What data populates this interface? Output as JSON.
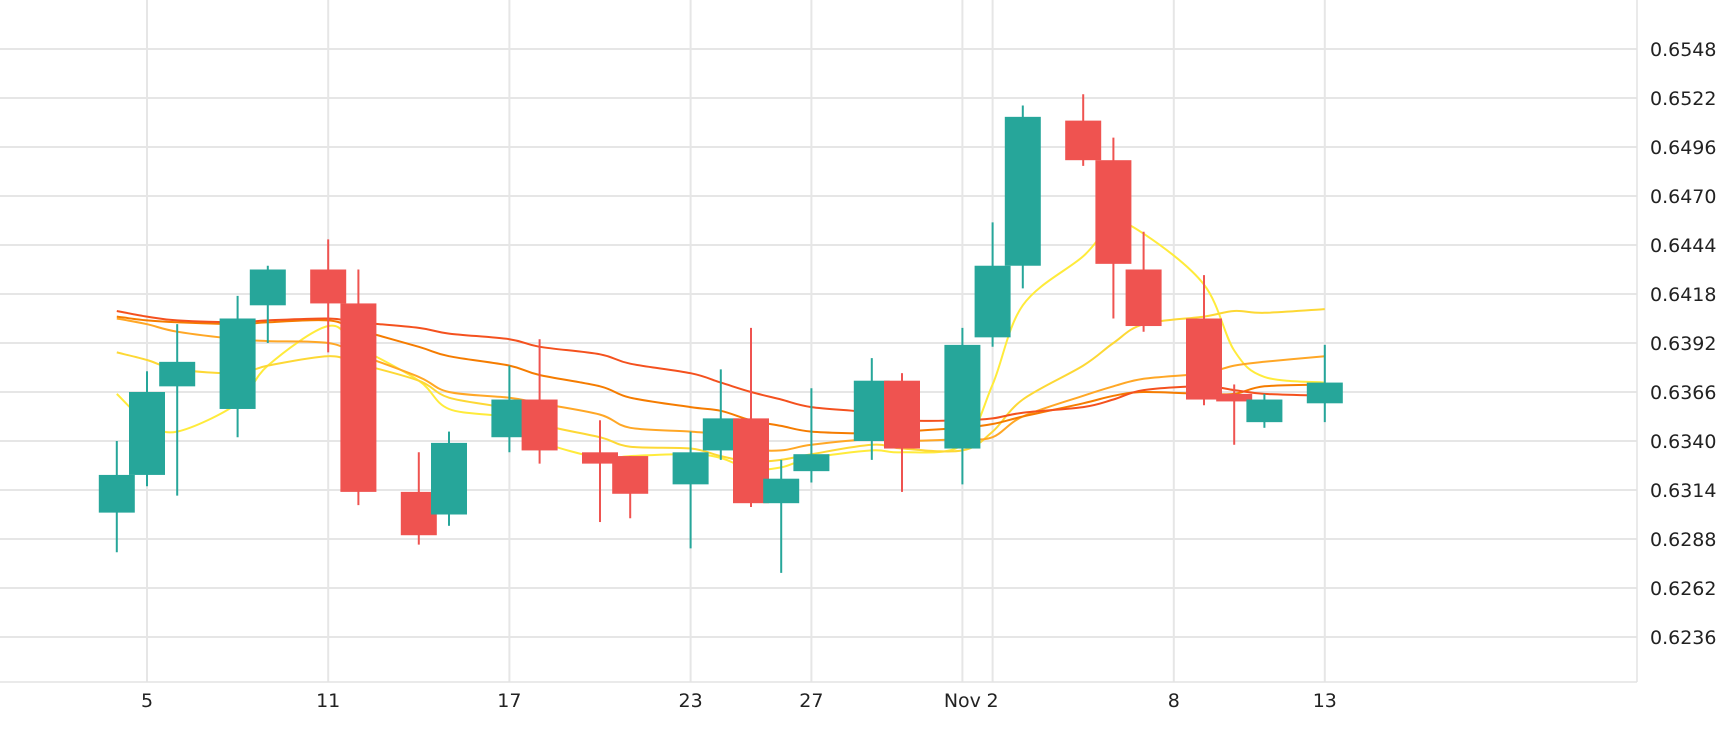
{
  "chart_data": {
    "type": "candlestick",
    "x_ticks": [
      {
        "date": "Oct 5",
        "label": "5"
      },
      {
        "date": "Oct 11",
        "label": "11"
      },
      {
        "date": "Oct 17",
        "label": "17"
      },
      {
        "date": "Oct 23",
        "label": "23"
      },
      {
        "date": "Oct 27",
        "label": "27"
      },
      {
        "date": "Nov 1",
        "label": "Nov"
      },
      {
        "date": "Nov 2",
        "label": "2"
      },
      {
        "date": "Nov 8",
        "label": "8"
      },
      {
        "date": "Nov 13",
        "label": "13"
      }
    ],
    "y_ticks": [
      "0.6548",
      "0.6522",
      "0.6496",
      "0.6470",
      "0.6444",
      "0.6418",
      "0.6392",
      "0.6366",
      "0.6340",
      "0.6314",
      "0.6288",
      "0.6262",
      "0.6236"
    ],
    "ylim": [
      0.6214,
      0.657
    ],
    "grid": true,
    "up_color": "#26a69a",
    "down_color": "#ef5350",
    "candles": [
      {
        "date": "Oct 4",
        "open": 0.6302,
        "high": 0.634,
        "low": 0.6281,
        "close": 0.6322
      },
      {
        "date": "Oct 5",
        "open": 0.6322,
        "high": 0.6377,
        "low": 0.6316,
        "close": 0.6366
      },
      {
        "date": "Oct 6",
        "open": 0.6369,
        "high": 0.6402,
        "low": 0.6311,
        "close": 0.6382
      },
      {
        "date": "Oct 8",
        "open": 0.6357,
        "high": 0.6417,
        "low": 0.6342,
        "close": 0.6405
      },
      {
        "date": "Oct 9",
        "open": 0.6412,
        "high": 0.6433,
        "low": 0.6392,
        "close": 0.6431
      },
      {
        "date": "Oct 11",
        "open": 0.6431,
        "high": 0.6447,
        "low": 0.6387,
        "close": 0.6413
      },
      {
        "date": "Oct 12",
        "open": 0.6413,
        "high": 0.6431,
        "low": 0.6306,
        "close": 0.6313
      },
      {
        "date": "Oct 14",
        "open": 0.6313,
        "high": 0.6334,
        "low": 0.6285,
        "close": 0.629
      },
      {
        "date": "Oct 15",
        "open": 0.6301,
        "high": 0.6345,
        "low": 0.6295,
        "close": 0.6339
      },
      {
        "date": "Oct 17",
        "open": 0.6342,
        "high": 0.638,
        "low": 0.6334,
        "close": 0.6362
      },
      {
        "date": "Oct 18",
        "open": 0.6362,
        "high": 0.6394,
        "low": 0.6328,
        "close": 0.6335
      },
      {
        "date": "Oct 20",
        "open": 0.6334,
        "high": 0.6351,
        "low": 0.6297,
        "close": 0.6328
      },
      {
        "date": "Oct 21",
        "open": 0.6332,
        "high": 0.6332,
        "low": 0.6299,
        "close": 0.6312
      },
      {
        "date": "Oct 23",
        "open": 0.6317,
        "high": 0.6345,
        "low": 0.6283,
        "close": 0.6334
      },
      {
        "date": "Oct 24",
        "open": 0.6335,
        "high": 0.6378,
        "low": 0.633,
        "close": 0.6352
      },
      {
        "date": "Oct 25",
        "open": 0.6352,
        "high": 0.64,
        "low": 0.6305,
        "close": 0.6307
      },
      {
        "date": "Oct 26",
        "open": 0.6307,
        "high": 0.633,
        "low": 0.627,
        "close": 0.632
      },
      {
        "date": "Oct 27",
        "open": 0.6324,
        "high": 0.6368,
        "low": 0.6318,
        "close": 0.6333
      },
      {
        "date": "Oct 29",
        "open": 0.634,
        "high": 0.6384,
        "low": 0.633,
        "close": 0.6372
      },
      {
        "date": "Oct 30",
        "open": 0.6372,
        "high": 0.6376,
        "low": 0.6313,
        "close": 0.6336
      },
      {
        "date": "Nov 1",
        "open": 0.6336,
        "high": 0.64,
        "low": 0.6317,
        "close": 0.6391
      },
      {
        "date": "Nov 2",
        "open": 0.6395,
        "high": 0.6456,
        "low": 0.639,
        "close": 0.6433
      },
      {
        "date": "Nov 3",
        "open": 0.6433,
        "high": 0.6518,
        "low": 0.6421,
        "close": 0.6512
      },
      {
        "date": "Nov 5",
        "open": 0.651,
        "high": 0.6524,
        "low": 0.6486,
        "close": 0.6489
      },
      {
        "date": "Nov 6",
        "open": 0.6489,
        "high": 0.6501,
        "low": 0.6405,
        "close": 0.6434
      },
      {
        "date": "Nov 7",
        "open": 0.6431,
        "high": 0.6451,
        "low": 0.6398,
        "close": 0.6401
      },
      {
        "date": "Nov 9",
        "open": 0.6405,
        "high": 0.6428,
        "low": 0.6359,
        "close": 0.6362
      },
      {
        "date": "Nov 10",
        "open": 0.6365,
        "high": 0.637,
        "low": 0.6338,
        "close": 0.6361
      },
      {
        "date": "Nov 11",
        "open": 0.635,
        "high": 0.6365,
        "low": 0.6347,
        "close": 0.6362
      },
      {
        "date": "Nov 13",
        "open": 0.636,
        "high": 0.6391,
        "low": 0.635,
        "close": 0.6371
      }
    ],
    "moving_averages": [
      {
        "color": "#ffeb3b",
        "values": [
          0.6365,
          0.635,
          0.6345,
          0.636,
          0.638,
          0.6401,
          0.639,
          0.6372,
          0.6357,
          0.6352,
          0.634,
          0.6331,
          0.6332,
          0.6333,
          0.6331,
          0.6325,
          0.6326,
          0.6331,
          0.6335,
          0.6334,
          0.6338,
          0.637,
          0.6412,
          0.6438,
          0.6455,
          0.645,
          0.6423,
          0.6388,
          0.6374,
          0.6371
        ]
      },
      {
        "color": "#fdd835",
        "values": [
          0.6387,
          0.6383,
          0.6378,
          0.6376,
          0.638,
          0.6385,
          0.6381,
          0.6372,
          0.6363,
          0.6357,
          0.6349,
          0.6342,
          0.6337,
          0.6336,
          0.6332,
          0.6329,
          0.633,
          0.6333,
          0.6338,
          0.6336,
          0.6335,
          0.6345,
          0.6362,
          0.638,
          0.6392,
          0.6402,
          0.6406,
          0.6409,
          0.6408,
          0.641
        ]
      },
      {
        "color": "#ffa726",
        "values": [
          0.6405,
          0.6402,
          0.6398,
          0.6394,
          0.6393,
          0.6392,
          0.6386,
          0.6374,
          0.6366,
          0.6363,
          0.636,
          0.6354,
          0.6347,
          0.6345,
          0.6343,
          0.6336,
          0.6335,
          0.6338,
          0.6341,
          0.634,
          0.6341,
          0.6342,
          0.6353,
          0.6364,
          0.6369,
          0.6373,
          0.6376,
          0.638,
          0.6382,
          0.6385
        ]
      },
      {
        "color": "#f57c00",
        "values": [
          0.6406,
          0.6404,
          0.6403,
          0.6402,
          0.6403,
          0.6404,
          0.6399,
          0.639,
          0.6385,
          0.638,
          0.6375,
          0.6369,
          0.6363,
          0.6358,
          0.6356,
          0.6351,
          0.6348,
          0.6345,
          0.6344,
          0.6345,
          0.6347,
          0.6349,
          0.6353,
          0.636,
          0.6364,
          0.6366,
          0.6365,
          0.6365,
          0.6369,
          0.637
        ]
      },
      {
        "color": "#f4511e",
        "values": [
          0.6409,
          0.6406,
          0.6404,
          0.6403,
          0.6404,
          0.6405,
          0.6403,
          0.64,
          0.6397,
          0.6394,
          0.639,
          0.6386,
          0.6381,
          0.6376,
          0.6371,
          0.6366,
          0.6362,
          0.6358,
          0.6355,
          0.6351,
          0.6351,
          0.6352,
          0.6355,
          0.6358,
          0.6362,
          0.6367,
          0.6369,
          0.6367,
          0.6365,
          0.6364
        ]
      }
    ]
  }
}
